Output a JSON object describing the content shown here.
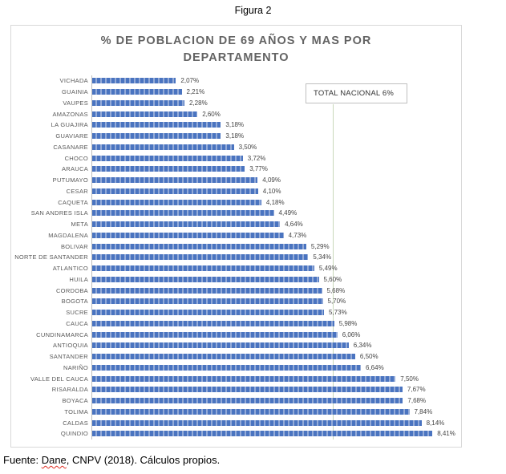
{
  "figure_caption": "Figura 2",
  "source_note": {
    "prefix": "Fuente: ",
    "misspelled_word": "Dane",
    "suffix": ", CNPV (2018). Cálculos propios."
  },
  "chart_data": {
    "type": "bar",
    "orientation": "horizontal",
    "title_line1": "% DE POBLACION DE 69 AÑOS Y MAS POR",
    "title_line2": "DEPARTAMENTO",
    "xlabel": "",
    "ylabel": "",
    "xlim": [
      0,
      9
    ],
    "grid": false,
    "legend": false,
    "annotation": {
      "label": "TOTAL NACIONAL 6%",
      "value": 6
    },
    "categories": [
      "VICHADA",
      "GUAINIA",
      "VAUPES",
      "AMAZONAS",
      "LA GUAJIRA",
      "GUAVIARE",
      "CASANARE",
      "CHOCO",
      "ARAUCA",
      "PUTUMAYO",
      "CESAR",
      "CAQUETA",
      "SAN ANDRES ISLA",
      "META",
      "MAGDALENA",
      "BOLIVAR",
      "NORTE DE SANTANDER",
      "ATLANTICO",
      "HUILA",
      "CORDOBA",
      "BOGOTA",
      "SUCRE",
      "CAUCA",
      "CUNDINAMARCA",
      "ANTIOQUIA",
      "SANTANDER",
      "NARIÑO",
      "VALLE DEL CAUCA",
      "RISARALDA",
      "BOYACA",
      "TOLIMA",
      "CALDAS",
      "QUINDIO"
    ],
    "values": [
      2.07,
      2.21,
      2.28,
      2.6,
      3.18,
      3.18,
      3.5,
      3.72,
      3.77,
      4.09,
      4.1,
      4.18,
      4.49,
      4.64,
      4.73,
      5.29,
      5.34,
      5.49,
      5.6,
      5.68,
      5.7,
      5.73,
      5.98,
      6.06,
      6.34,
      6.5,
      6.64,
      7.5,
      7.67,
      7.68,
      7.84,
      8.14,
      8.41
    ],
    "value_labels": [
      "2,07%",
      "2,21%",
      "2,28%",
      "2,60%",
      "3,18%",
      "3,18%",
      "3,50%",
      "3,72%",
      "3,77%",
      "4,09%",
      "4,10%",
      "4,18%",
      "4,49%",
      "4,64%",
      "4,73%",
      "5,29%",
      "5,34%",
      "5,49%",
      "5,60%",
      "5,68%",
      "5,70%",
      "5,73%",
      "5,98%",
      "6,06%",
      "6,34%",
      "6,50%",
      "6,64%",
      "7,50%",
      "7,67%",
      "7,68%",
      "7,84%",
      "8,14%",
      "8,41%"
    ],
    "colors": {
      "bar": "#4A74C0",
      "bar_hatch": "#94ABD8",
      "annotation_line": "#C9D8BA",
      "axis": "#BFBFBF",
      "frame_border": "#D9D9D9",
      "title": "#636363",
      "category_label": "#595959",
      "value_label": "#444444",
      "squiggle": "#E02B20"
    }
  }
}
